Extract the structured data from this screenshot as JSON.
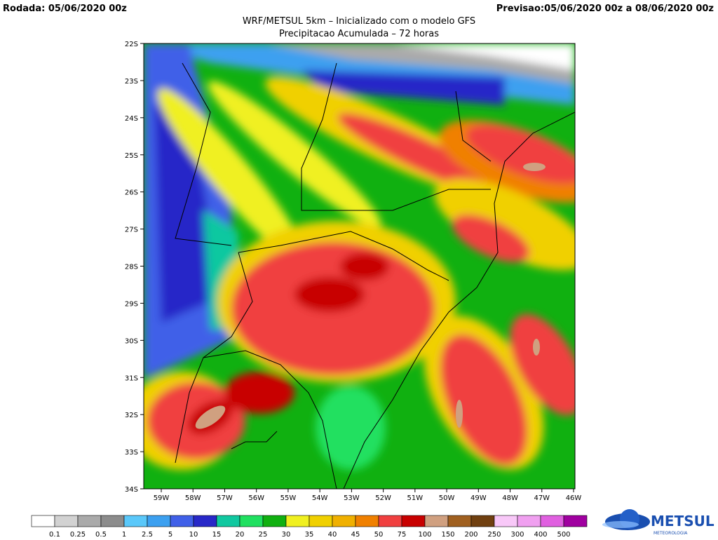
{
  "header": {
    "run": "Rodada: 05/06/2020 00z",
    "forecast": "Previsao:05/06/2020 00z a 08/06/2020 00z"
  },
  "title": "WRF/METSUL 5km – Inicializado com o modelo GFS",
  "subtitle": "Precipitacao Acumulada – 72 horas",
  "map": {
    "lat_labels": [
      "22S",
      "23S",
      "24S",
      "25S",
      "26S",
      "27S",
      "28S",
      "29S",
      "30S",
      "31S",
      "32S",
      "33S",
      "34S"
    ],
    "lon_labels": [
      "59W",
      "58W",
      "57W",
      "56W",
      "55W",
      "54W",
      "53W",
      "52W",
      "51W",
      "50W",
      "49W",
      "48W",
      "47W",
      "46W"
    ]
  },
  "legend": {
    "labels": [
      "0.1",
      "0.25",
      "0.5",
      "1",
      "2.5",
      "5",
      "10",
      "15",
      "20",
      "25",
      "30",
      "35",
      "40",
      "45",
      "50",
      "75",
      "100",
      "150",
      "200",
      "250",
      "300",
      "400",
      "500"
    ],
    "colors": [
      "#ffffff",
      "#d2d2d2",
      "#aaaaaa",
      "#8c8c8c",
      "#5ac8fa",
      "#3ca0f0",
      "#4060e8",
      "#2828c8",
      "#10c8a0",
      "#20e060",
      "#10b010",
      "#f0f020",
      "#f0d000",
      "#f0b000",
      "#f08000",
      "#f04040",
      "#c80000",
      "#d0a080",
      "#a06020",
      "#704010",
      "#f8c8f8",
      "#f0a0f0",
      "#e060e0",
      "#a000a0"
    ]
  },
  "logo": {
    "name": "METSUL",
    "tagline": "METEOROLOGIA"
  }
}
